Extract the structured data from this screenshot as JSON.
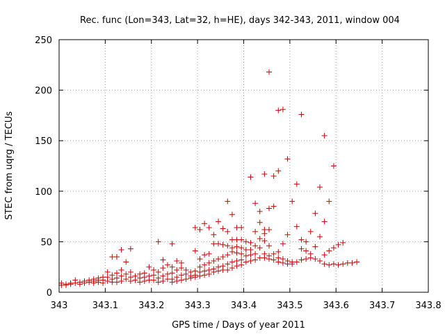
{
  "chart_data": {
    "type": "scatter",
    "title": "Rec. func (Lon=343, Lat=32, h=HE), days 342-343, 2011, window 004",
    "xlabel": "GPS time / Days of year 2011",
    "ylabel": "STEC from uqrg / TECUs",
    "xlim": [
      343,
      343.8
    ],
    "ylim": [
      0,
      250
    ],
    "xticks": [
      "343",
      "343.1",
      "343.2",
      "343.3",
      "343.4",
      "343.5",
      "343.6",
      "343.7",
      "343.8"
    ],
    "yticks": [
      "0",
      "50",
      "100",
      "150",
      "200",
      "250"
    ],
    "grid": true,
    "legend": "none",
    "marker": "+",
    "color": "#cc0000",
    "points": [
      [
        343.005,
        9
      ],
      [
        343.005,
        7
      ],
      [
        343.015,
        8
      ],
      [
        343.015,
        7
      ],
      [
        343.025,
        9
      ],
      [
        343.025,
        8
      ],
      [
        343.035,
        12
      ],
      [
        343.035,
        9
      ],
      [
        343.045,
        10
      ],
      [
        343.045,
        8
      ],
      [
        343.055,
        11
      ],
      [
        343.055,
        9
      ],
      [
        343.065,
        12
      ],
      [
        343.065,
        10
      ],
      [
        343.075,
        13
      ],
      [
        343.075,
        11
      ],
      [
        343.075,
        9
      ],
      [
        343.085,
        14
      ],
      [
        343.085,
        12
      ],
      [
        343.085,
        10
      ],
      [
        343.095,
        15
      ],
      [
        343.095,
        12
      ],
      [
        343.095,
        9
      ],
      [
        343.105,
        20
      ],
      [
        343.105,
        15
      ],
      [
        343.105,
        11
      ],
      [
        343.115,
        35
      ],
      [
        343.115,
        17
      ],
      [
        343.115,
        13
      ],
      [
        343.115,
        10
      ],
      [
        343.125,
        35
      ],
      [
        343.125,
        19
      ],
      [
        343.125,
        14
      ],
      [
        343.125,
        10
      ],
      [
        343.135,
        42
      ],
      [
        343.135,
        22
      ],
      [
        343.135,
        16
      ],
      [
        343.135,
        11
      ],
      [
        343.145,
        30
      ],
      [
        343.145,
        18
      ],
      [
        343.145,
        13
      ],
      [
        343.155,
        43
      ],
      [
        343.155,
        20
      ],
      [
        343.155,
        15
      ],
      [
        343.155,
        11
      ],
      [
        343.165,
        16
      ],
      [
        343.165,
        12
      ],
      [
        343.175,
        18
      ],
      [
        343.175,
        14
      ],
      [
        343.175,
        10
      ],
      [
        343.185,
        19
      ],
      [
        343.185,
        15
      ],
      [
        343.185,
        11
      ],
      [
        343.195,
        25
      ],
      [
        343.195,
        16
      ],
      [
        343.195,
        12
      ],
      [
        343.205,
        22
      ],
      [
        343.205,
        17
      ],
      [
        343.205,
        12
      ],
      [
        343.215,
        50
      ],
      [
        343.215,
        20
      ],
      [
        343.215,
        14
      ],
      [
        343.215,
        10
      ],
      [
        343.225,
        32
      ],
      [
        343.225,
        24
      ],
      [
        343.225,
        16
      ],
      [
        343.225,
        11
      ],
      [
        343.235,
        27
      ],
      [
        343.235,
        18
      ],
      [
        343.235,
        13
      ],
      [
        343.245,
        48
      ],
      [
        343.245,
        25
      ],
      [
        343.245,
        19
      ],
      [
        343.245,
        13
      ],
      [
        343.245,
        10
      ],
      [
        343.255,
        31
      ],
      [
        343.255,
        22
      ],
      [
        343.255,
        15
      ],
      [
        343.255,
        11
      ],
      [
        343.265,
        29
      ],
      [
        343.265,
        24
      ],
      [
        343.265,
        17
      ],
      [
        343.265,
        12
      ],
      [
        343.275,
        22
      ],
      [
        343.275,
        18
      ],
      [
        343.275,
        13
      ],
      [
        343.285,
        20
      ],
      [
        343.285,
        16
      ],
      [
        343.285,
        14
      ],
      [
        343.295,
        64
      ],
      [
        343.295,
        41
      ],
      [
        343.295,
        21
      ],
      [
        343.295,
        17
      ],
      [
        343.295,
        15
      ],
      [
        343.305,
        62
      ],
      [
        343.305,
        33
      ],
      [
        343.305,
        25
      ],
      [
        343.305,
        20
      ],
      [
        343.305,
        16
      ],
      [
        343.315,
        68
      ],
      [
        343.315,
        37
      ],
      [
        343.315,
        27
      ],
      [
        343.315,
        21
      ],
      [
        343.315,
        17
      ],
      [
        343.325,
        64
      ],
      [
        343.325,
        38
      ],
      [
        343.325,
        29
      ],
      [
        343.325,
        22
      ],
      [
        343.325,
        18
      ],
      [
        343.335,
        57
      ],
      [
        343.335,
        48
      ],
      [
        343.335,
        31
      ],
      [
        343.335,
        23
      ],
      [
        343.335,
        20
      ],
      [
        343.345,
        70
      ],
      [
        343.345,
        48
      ],
      [
        343.345,
        33
      ],
      [
        343.345,
        25
      ],
      [
        343.345,
        21
      ],
      [
        343.355,
        63
      ],
      [
        343.355,
        47
      ],
      [
        343.355,
        35
      ],
      [
        343.355,
        26
      ],
      [
        343.355,
        22
      ],
      [
        343.365,
        90
      ],
      [
        343.365,
        60
      ],
      [
        343.365,
        46
      ],
      [
        343.365,
        37
      ],
      [
        343.365,
        28
      ],
      [
        343.365,
        22
      ],
      [
        343.375,
        77
      ],
      [
        343.375,
        52
      ],
      [
        343.375,
        44
      ],
      [
        343.375,
        40
      ],
      [
        343.375,
        30
      ],
      [
        343.375,
        24
      ],
      [
        343.385,
        64
      ],
      [
        343.385,
        52
      ],
      [
        343.385,
        45
      ],
      [
        343.385,
        39
      ],
      [
        343.385,
        31
      ],
      [
        343.385,
        26
      ],
      [
        343.395,
        64
      ],
      [
        343.395,
        52
      ],
      [
        343.395,
        44
      ],
      [
        343.395,
        38
      ],
      [
        343.395,
        32
      ],
      [
        343.395,
        27
      ],
      [
        343.405,
        50
      ],
      [
        343.405,
        42
      ],
      [
        343.405,
        36
      ],
      [
        343.405,
        30
      ],
      [
        343.415,
        114
      ],
      [
        343.415,
        49
      ],
      [
        343.415,
        42
      ],
      [
        343.415,
        37
      ],
      [
        343.415,
        31
      ],
      [
        343.425,
        88
      ],
      [
        343.425,
        60
      ],
      [
        343.425,
        46
      ],
      [
        343.425,
        38
      ],
      [
        343.425,
        32
      ],
      [
        343.435,
        80
      ],
      [
        343.435,
        69
      ],
      [
        343.435,
        53
      ],
      [
        343.435,
        44
      ],
      [
        343.435,
        34
      ],
      [
        343.445,
        117
      ],
      [
        343.445,
        62
      ],
      [
        343.445,
        58
      ],
      [
        343.445,
        51
      ],
      [
        343.445,
        38
      ],
      [
        343.445,
        34
      ],
      [
        343.455,
        218
      ],
      [
        343.455,
        83
      ],
      [
        343.455,
        62
      ],
      [
        343.455,
        46
      ],
      [
        343.455,
        36
      ],
      [
        343.455,
        33
      ],
      [
        343.465,
        115
      ],
      [
        343.465,
        85
      ],
      [
        343.465,
        38
      ],
      [
        343.465,
        32
      ],
      [
        343.475,
        180
      ],
      [
        343.475,
        120
      ],
      [
        343.475,
        40
      ],
      [
        343.475,
        34
      ],
      [
        343.475,
        30
      ],
      [
        343.485,
        181
      ],
      [
        343.485,
        48
      ],
      [
        343.485,
        33
      ],
      [
        343.485,
        29
      ],
      [
        343.495,
        132
      ],
      [
        343.495,
        57
      ],
      [
        343.495,
        31
      ],
      [
        343.495,
        28
      ],
      [
        343.505,
        90
      ],
      [
        343.505,
        30
      ],
      [
        343.505,
        28
      ],
      [
        343.515,
        107
      ],
      [
        343.515,
        65
      ],
      [
        343.515,
        30
      ],
      [
        343.525,
        176
      ],
      [
        343.525,
        52
      ],
      [
        343.525,
        43
      ],
      [
        343.525,
        32
      ],
      [
        343.535,
        50
      ],
      [
        343.535,
        41
      ],
      [
        343.535,
        33
      ],
      [
        343.545,
        60
      ],
      [
        343.545,
        38
      ],
      [
        343.545,
        34
      ],
      [
        343.555,
        78
      ],
      [
        343.555,
        45
      ],
      [
        343.555,
        33
      ],
      [
        343.565,
        104
      ],
      [
        343.565,
        55
      ],
      [
        343.565,
        31
      ],
      [
        343.575,
        155
      ],
      [
        343.575,
        70
      ],
      [
        343.575,
        37
      ],
      [
        343.575,
        28
      ],
      [
        343.585,
        90
      ],
      [
        343.585,
        41
      ],
      [
        343.585,
        27
      ],
      [
        343.595,
        125
      ],
      [
        343.595,
        44
      ],
      [
        343.595,
        28
      ],
      [
        343.605,
        47
      ],
      [
        343.605,
        27
      ],
      [
        343.615,
        49
      ],
      [
        343.615,
        28
      ],
      [
        343.625,
        29
      ],
      [
        343.635,
        29
      ],
      [
        343.645,
        30
      ]
    ]
  }
}
